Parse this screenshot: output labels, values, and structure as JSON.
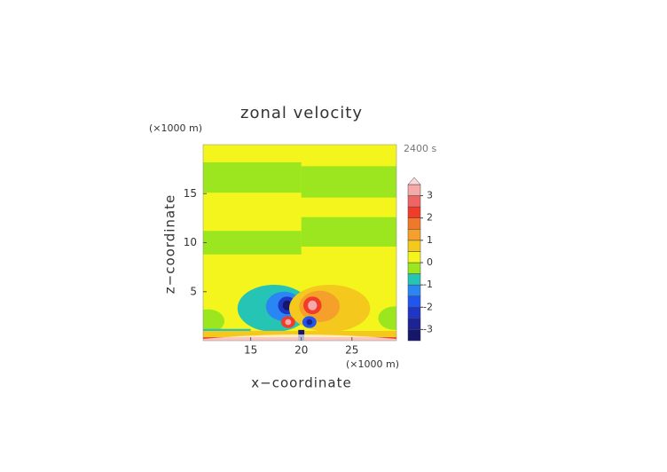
{
  "chart_data": {
    "type": "contour",
    "title": "zonal velocity",
    "xlabel": "x−coordinate",
    "ylabel": "z−coordinate",
    "x_unit": "(×1000 m)",
    "y_unit": "(×1000 m)",
    "time_label": "2400 s",
    "xlim": [
      10.3,
      29.4
    ],
    "ylim": [
      0,
      20
    ],
    "xticks": [
      15,
      20,
      25
    ],
    "yticks": [
      5,
      10,
      15
    ],
    "background_level": 0,
    "cells": [
      {
        "x": 17.3,
        "z": 3.3,
        "rx": 3.6,
        "rz": 2.4,
        "level": -1
      },
      {
        "x": 18.3,
        "z": 3.5,
        "rx": 1.8,
        "rz": 1.5,
        "level": -1.5
      },
      {
        "x": 18.6,
        "z": 3.6,
        "rx": 0.9,
        "rz": 0.9,
        "level": -2.5
      },
      {
        "x": 18.6,
        "z": 3.6,
        "rx": 0.45,
        "rz": 0.5,
        "level": -3.5
      },
      {
        "x": 22.8,
        "z": 3.3,
        "rx": 4,
        "rz": 2.4,
        "level": 0.5
      },
      {
        "x": 21.8,
        "z": 3.5,
        "rx": 2,
        "rz": 1.6,
        "level": 1
      },
      {
        "x": 21.1,
        "z": 3.6,
        "rx": 0.9,
        "rz": 0.9,
        "level": 2
      },
      {
        "x": 21.1,
        "z": 3.6,
        "rx": 0.45,
        "rz": 0.5,
        "level": 3
      },
      {
        "x": 18.7,
        "z": 1.9,
        "rx": 0.7,
        "rz": 0.6,
        "level": 2
      },
      {
        "x": 18.7,
        "z": 1.9,
        "rx": 0.3,
        "rz": 0.3,
        "level": 3
      },
      {
        "x": 20.8,
        "z": 1.9,
        "rx": 0.7,
        "rz": 0.6,
        "level": -2
      },
      {
        "x": 20.8,
        "z": 1.9,
        "rx": 0.3,
        "rz": 0.3,
        "level": -3
      },
      {
        "x": 10.8,
        "z": 2,
        "rx": 1.6,
        "rz": 1.2,
        "level": -0.5
      },
      {
        "x": 29.2,
        "z": 2.3,
        "rx": 1.6,
        "rz": 1.2,
        "level": -0.5
      }
    ],
    "bands": [
      {
        "x": [
          10.3,
          20
        ],
        "z": [
          15.1,
          18.2
        ],
        "level": -0.5
      },
      {
        "x": [
          10.3,
          20
        ],
        "z": [
          8.8,
          11.2
        ],
        "level": -0.5
      },
      {
        "x": [
          20,
          29.4
        ],
        "z": [
          14.6,
          17.8
        ],
        "level": -0.5
      },
      {
        "x": [
          20,
          29.4
        ],
        "z": [
          9.6,
          12.6
        ],
        "level": -0.5
      },
      {
        "x": [
          10.3,
          29.4
        ],
        "z": [
          0.3,
          1
        ],
        "level": 0.5
      },
      {
        "x": [
          10.3,
          15
        ],
        "z": [
          1,
          1.2
        ],
        "level": -1
      },
      {
        "x": [
          10.3,
          29.4
        ],
        "z": [
          0,
          0.35
        ],
        "level": 2
      },
      {
        "x": [
          19.7,
          20.3
        ],
        "z": [
          0,
          1.1
        ],
        "level": -3.5
      }
    ],
    "colorbar": {
      "bounds": [
        -3.5,
        -3,
        -2.5,
        -2,
        -1.5,
        -1,
        -0.5,
        0,
        0.5,
        1,
        1.5,
        2,
        2.5,
        3,
        3.5
      ],
      "colors": [
        "#16166b",
        "#1d2396",
        "#1f35c6",
        "#2156ec",
        "#2a86f2",
        "#26c4b4",
        "#9be61e",
        "#f5f51e",
        "#f5c81e",
        "#f5a02a",
        "#f0782a",
        "#f03c28",
        "#f06464",
        "#f5aaaa"
      ],
      "extend_color": "#fcd8d8",
      "ticks": [
        -3,
        -2,
        -1,
        0,
        1,
        2,
        3
      ]
    }
  }
}
